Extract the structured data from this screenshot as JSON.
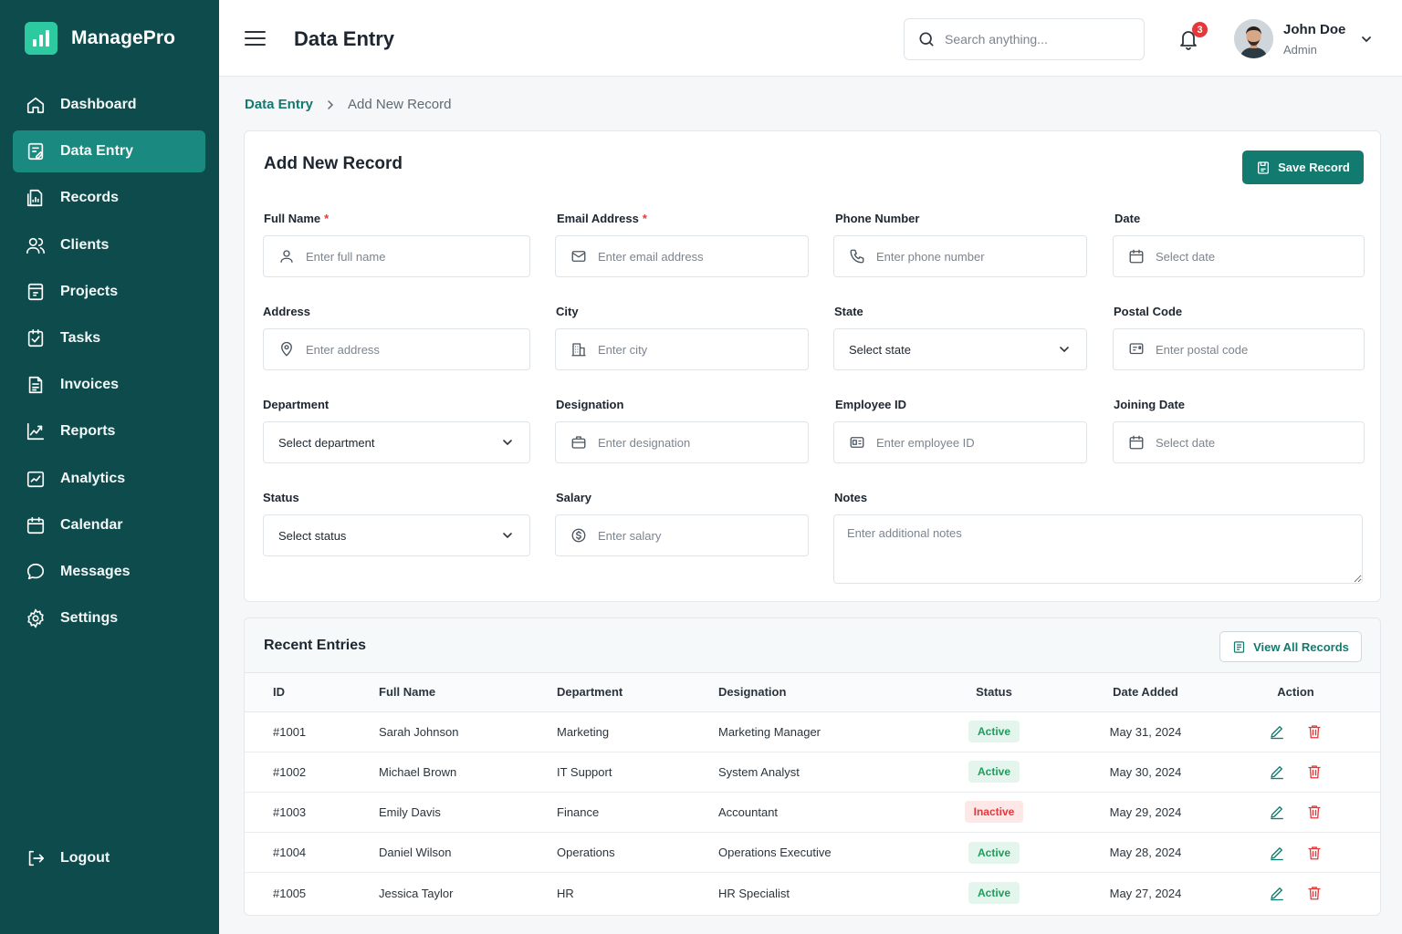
{
  "app": {
    "name": "ManagePro",
    "accent": "#137a6f",
    "sidebar_bg": "#0e4b4c"
  },
  "sidebar": {
    "items": [
      {
        "label": "Dashboard",
        "icon": "home-icon"
      },
      {
        "label": "Data Entry",
        "icon": "clipboard-edit-icon"
      },
      {
        "label": "Records",
        "icon": "records-icon"
      },
      {
        "label": "Clients",
        "icon": "users-icon"
      },
      {
        "label": "Projects",
        "icon": "folder-icon"
      },
      {
        "label": "Tasks",
        "icon": "task-icon"
      },
      {
        "label": "Invoices",
        "icon": "invoice-icon"
      },
      {
        "label": "Reports",
        "icon": "chart-line-icon"
      },
      {
        "label": "Analytics",
        "icon": "analytics-icon"
      },
      {
        "label": "Calendar",
        "icon": "calendar-icon"
      },
      {
        "label": "Messages",
        "icon": "message-icon"
      },
      {
        "label": "Settings",
        "icon": "gear-icon"
      }
    ],
    "active_index": 1,
    "logout_label": "Logout"
  },
  "header": {
    "title": "Data Entry",
    "search_placeholder": "Search anything...",
    "notification_count": "3",
    "user_name": "John Doe",
    "user_role": "Admin"
  },
  "breadcrumb": {
    "parent": "Data Entry",
    "current": "Add New Record"
  },
  "form": {
    "title": "Add New Record",
    "save_label": "Save Record",
    "fields": {
      "full_name": {
        "label": "Full Name",
        "placeholder": "Enter full name"
      },
      "email": {
        "label": "Email Address",
        "placeholder": "Enter email address"
      },
      "phone": {
        "label": "Phone Number",
        "placeholder": "Enter phone number"
      },
      "date": {
        "label": "Date",
        "placeholder": "Select date"
      },
      "address": {
        "label": "Address",
        "placeholder": "Enter address"
      },
      "city": {
        "label": "City",
        "placeholder": "Enter city"
      },
      "state": {
        "label": "State",
        "value": "Select state"
      },
      "postal": {
        "label": "Postal Code",
        "placeholder": "Enter postal code"
      },
      "department": {
        "label": "Department",
        "value": "Select department"
      },
      "designation": {
        "label": "Designation",
        "placeholder": "Enter designation"
      },
      "employee_id": {
        "label": "Employee ID",
        "placeholder": "Enter employee ID"
      },
      "joining_date": {
        "label": "Joining Date",
        "placeholder": "Select date"
      },
      "status": {
        "label": "Status",
        "value": "Select status"
      },
      "salary": {
        "label": "Salary",
        "placeholder": "Enter salary"
      },
      "notes": {
        "label": "Notes",
        "placeholder": "Enter additional notes"
      }
    },
    "required_mark": "*"
  },
  "recent": {
    "title": "Recent Entries",
    "view_all_label": "View All Records",
    "columns": [
      "ID",
      "Full Name",
      "Department",
      "Designation",
      "Status",
      "Date Added",
      "Action"
    ],
    "rows": [
      {
        "id": "#1001",
        "name": "Sarah Johnson",
        "department": "Marketing",
        "designation": "Marketing Manager",
        "status": "Active",
        "date": "May 31, 2024"
      },
      {
        "id": "#1002",
        "name": "Michael Brown",
        "department": "IT Support",
        "designation": "System Analyst",
        "status": "Active",
        "date": "May 30, 2024"
      },
      {
        "id": "#1003",
        "name": "Emily Davis",
        "department": "Finance",
        "designation": "Accountant",
        "status": "Inactive",
        "date": "May 29, 2024"
      },
      {
        "id": "#1004",
        "name": "Daniel Wilson",
        "department": "Operations",
        "designation": "Operations Executive",
        "status": "Active",
        "date": "May 28, 2024"
      },
      {
        "id": "#1005",
        "name": "Jessica Taylor",
        "department": "HR",
        "designation": "HR Specialist",
        "status": "Active",
        "date": "May 27, 2024"
      }
    ]
  }
}
